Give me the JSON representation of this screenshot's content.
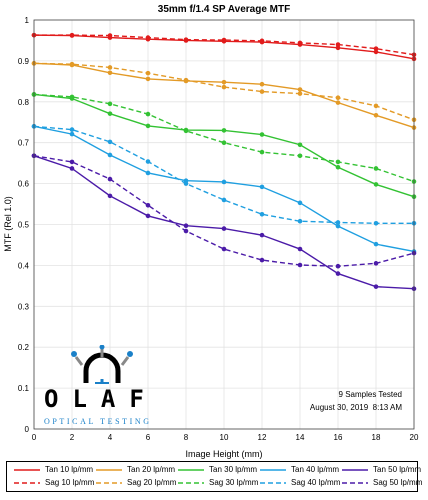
{
  "chart_data": {
    "type": "line",
    "title": "35mm f/1.4 SP Average MTF",
    "xlabel": "Image Height (mm)",
    "ylabel": "MTF (Rel 1.0)",
    "xlim": [
      0,
      20
    ],
    "ylim": [
      0,
      1.0
    ],
    "xticks": [
      "0",
      "2",
      "4",
      "6",
      "8",
      "10",
      "12",
      "14",
      "16",
      "18",
      "20"
    ],
    "yticks": [
      "0",
      "0.1",
      "0.2",
      "0.3",
      "0.4",
      "0.5",
      "0.6",
      "0.7",
      "0.8",
      "0.9",
      "1"
    ],
    "grid": true,
    "legend_position": "bottom",
    "x": [
      0,
      2,
      4,
      6,
      8,
      10,
      12,
      14,
      16,
      18,
      20
    ],
    "series": [
      {
        "name": "Tan 10 lp/mm",
        "color": "#e11b1b",
        "dash": "solid",
        "values": [
          0.963,
          0.962,
          0.957,
          0.953,
          0.95,
          0.948,
          0.946,
          0.94,
          0.932,
          0.922,
          0.905
        ]
      },
      {
        "name": "Sag 10 lp/mm",
        "color": "#e11b1b",
        "dash": "dashed",
        "values": [
          0.963,
          0.963,
          0.962,
          0.957,
          0.952,
          0.951,
          0.949,
          0.944,
          0.94,
          0.93,
          0.915
        ]
      },
      {
        "name": "Tan 20 lp/mm",
        "color": "#e39a26",
        "dash": "solid",
        "values": [
          0.894,
          0.89,
          0.871,
          0.856,
          0.851,
          0.848,
          0.843,
          0.83,
          0.798,
          0.767,
          0.737
        ]
      },
      {
        "name": "Sag 20 lp/mm",
        "color": "#e39a26",
        "dash": "dashed",
        "values": [
          0.894,
          0.892,
          0.884,
          0.87,
          0.853,
          0.836,
          0.825,
          0.82,
          0.81,
          0.79,
          0.756
        ]
      },
      {
        "name": "Tan 30 lp/mm",
        "color": "#33c233",
        "dash": "solid",
        "values": [
          0.818,
          0.808,
          0.771,
          0.741,
          0.731,
          0.73,
          0.72,
          0.695,
          0.64,
          0.598,
          0.568
        ]
      },
      {
        "name": "Sag 30 lp/mm",
        "color": "#33c233",
        "dash": "dashed",
        "values": [
          0.818,
          0.812,
          0.795,
          0.77,
          0.729,
          0.7,
          0.677,
          0.668,
          0.653,
          0.637,
          0.605
        ]
      },
      {
        "name": "Tan 40 lp/mm",
        "color": "#1f9fe0",
        "dash": "solid",
        "values": [
          0.74,
          0.721,
          0.67,
          0.626,
          0.607,
          0.604,
          0.592,
          0.553,
          0.496,
          0.452,
          0.434
        ]
      },
      {
        "name": "Sag 40 lp/mm",
        "color": "#1f9fe0",
        "dash": "dashed",
        "values": [
          0.74,
          0.732,
          0.702,
          0.654,
          0.6,
          0.56,
          0.525,
          0.508,
          0.505,
          0.503,
          0.503
        ]
      },
      {
        "name": "Tan 50 lp/mm",
        "color": "#4b1ba8",
        "dash": "solid",
        "values": [
          0.668,
          0.637,
          0.57,
          0.521,
          0.497,
          0.49,
          0.474,
          0.44,
          0.38,
          0.348,
          0.343
        ]
      },
      {
        "name": "Sag 50 lp/mm",
        "color": "#4b1ba8",
        "dash": "dashed",
        "values": [
          0.668,
          0.653,
          0.611,
          0.547,
          0.484,
          0.44,
          0.413,
          0.401,
          0.398,
          0.405,
          0.43
        ]
      }
    ]
  },
  "annotations": {
    "samples": "9 Samples Tested",
    "date": "August 30, 2019",
    "time": "8:13 AM"
  },
  "logo": {
    "word": "OLAF",
    "tagline": "OPTICAL TESTING"
  }
}
